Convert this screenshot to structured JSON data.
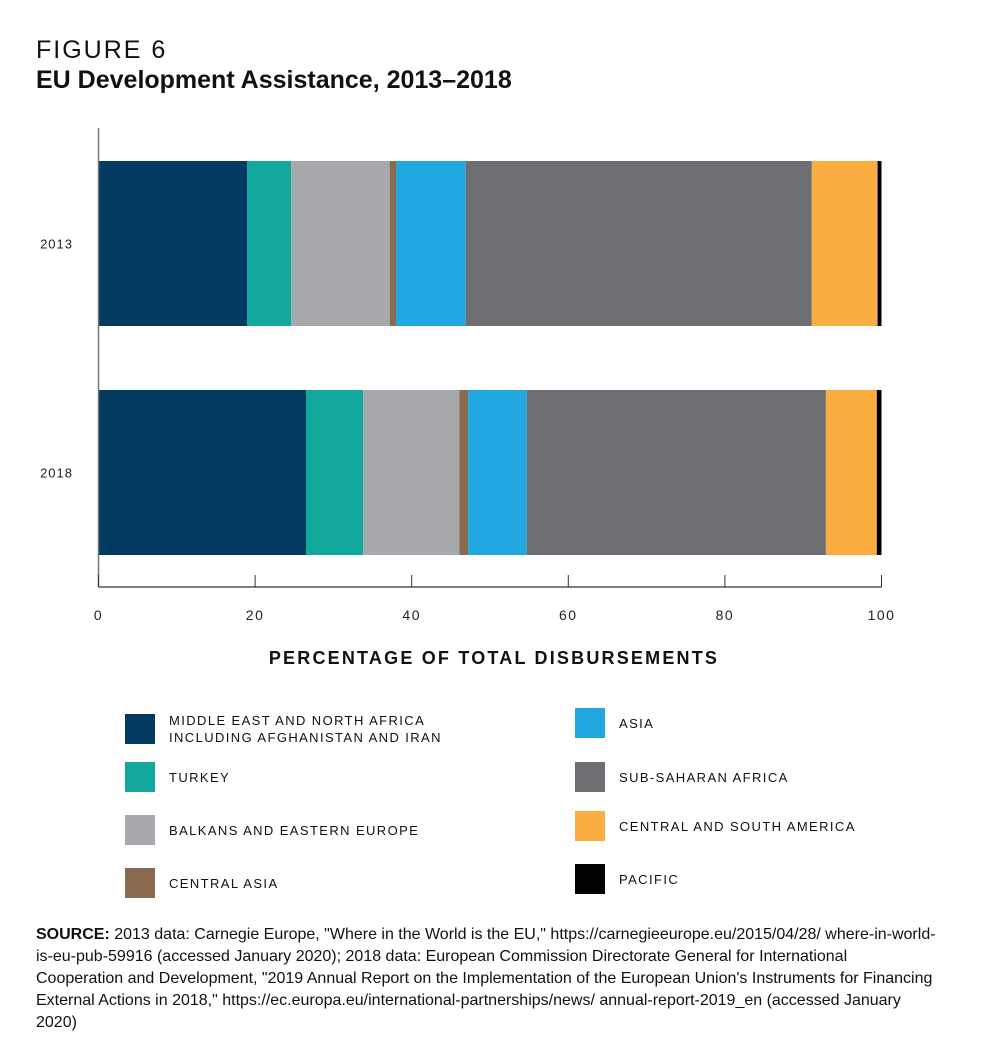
{
  "figure_label": "FIGURE 6",
  "title": "EU Development Assistance, 2013–2018",
  "chart_data": {
    "type": "bar",
    "orientation": "horizontal",
    "stacked": true,
    "categories": [
      "2013",
      "2018"
    ],
    "xlabel": "PERCENTAGE OF TOTAL DISBURSEMENTS",
    "xlim": [
      0,
      100
    ],
    "xticks": [
      "0",
      "20",
      "40",
      "60",
      "80",
      "100"
    ],
    "grid": false,
    "legend_placement": "bottom",
    "series": [
      {
        "name": "MIDDLE EAST AND NORTH AFRICA INCLUDING AFGHANISTAN AND IRAN",
        "color": "#023a62",
        "values": [
          19.0,
          26.5
        ]
      },
      {
        "name": "TURKEY",
        "color": "#13a89e",
        "values": [
          5.6,
          7.3
        ]
      },
      {
        "name": "BALKANS AND EASTERN EUROPE",
        "color": "#a7a9ac",
        "values": [
          12.6,
          12.3
        ]
      },
      {
        "name": "CENTRAL ASIA",
        "color": "#8b6b4f",
        "values": [
          0.8,
          1.1
        ]
      },
      {
        "name": "ASIA",
        "color": "#22a7e0",
        "values": [
          8.9,
          7.5
        ]
      },
      {
        "name": "SUB-SAHARAN AFRICA",
        "color": "#6d6e71",
        "values": [
          44.2,
          38.2
        ]
      },
      {
        "name": "CENTRAL AND SOUTH AMERICA",
        "color": "#fbad41",
        "values": [
          8.4,
          6.5
        ]
      },
      {
        "name": "PACIFIC",
        "color": "#000000",
        "values": [
          0.5,
          0.6
        ]
      }
    ]
  },
  "legend_lines": {
    "mena_1": "MIDDLE EAST AND NORTH AFRICA",
    "mena_2": "INCLUDING AFGHANISTAN AND IRAN"
  },
  "source": {
    "label": "SOURCE:",
    "text": " 2013 data: Carnegie Europe, \"Where in the World is the EU,\" https://carnegieeurope.eu/2015/04/28/ where-in-world-is-eu-pub-59916 (accessed January 2020); 2018 data: European Commission Directorate General for International Cooperation and Development, \"2019 Annual Report on the Implementation of the European Union's Instruments for Financing External Actions in 2018,\" https://ec.europa.eu/international-partnerships/news/ annual-report-2019_en (accessed January 2020)"
  }
}
